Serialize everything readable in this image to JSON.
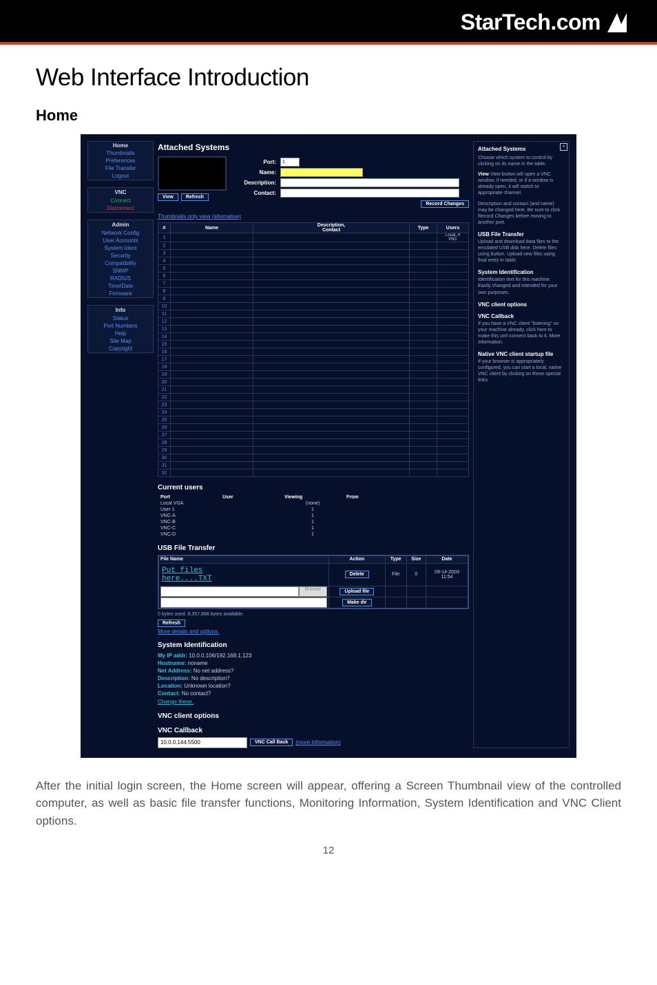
{
  "logo_text": "StarTech.com",
  "section_title": "Web Interface Introduction",
  "sub_heading": "Home",
  "nav": {
    "group1": [
      "Home",
      "Thumbnails",
      "Preferences",
      "File Transfer",
      "Logout"
    ],
    "vnc_head": "VNC",
    "vnc_items": [
      {
        "t": "Connect",
        "c": "nav-green"
      },
      {
        "t": "Disconnect",
        "c": "nav-red"
      }
    ],
    "admin_head": "Admin",
    "admin_items": [
      "Network Config",
      "User Accounts",
      "System Ident",
      "Security",
      "Compatibility",
      "SNMP",
      "RADIUS",
      "Time/Date",
      "Firmware"
    ],
    "info_head": "Info",
    "info_items": [
      "Status",
      "Port Numbers",
      "Help",
      "Site Map",
      "Copyright"
    ]
  },
  "attached": {
    "title": "Attached Systems",
    "labels": {
      "port": "Port:",
      "name": "Name:",
      "desc": "Description:",
      "contact": "Contact:",
      "port_val": "1"
    },
    "view_btn": "View",
    "refresh_btn": "Refresh",
    "record_btn": "Record Changes",
    "thumb_link": "Thumbnails only view (alternative)",
    "cols": [
      "#",
      "Name",
      "Description,\nContact",
      "Type",
      "Users"
    ],
    "first_row_users": "Local, 4\nVNC",
    "row_count": 32
  },
  "users": {
    "title": "Current users",
    "cols": [
      "Port",
      "User",
      "Viewing",
      "From"
    ],
    "rows": [
      [
        "Local VGA",
        "",
        "(none)",
        ""
      ],
      [
        "User 1",
        "",
        "1",
        ""
      ],
      [
        "VNC-A",
        "",
        "1",
        ""
      ],
      [
        "VNC-B",
        "",
        "1",
        ""
      ],
      [
        "VNC-C",
        "",
        "1",
        ""
      ],
      [
        "VNC-D",
        "",
        "1",
        ""
      ]
    ]
  },
  "filetransfer": {
    "title": "USB File Transfer",
    "cols": [
      "File Name",
      "Action",
      "Type",
      "Size",
      "Date"
    ],
    "file_line1": "Put files",
    "file_line2": "here....TXT",
    "delete_btn": "Delete",
    "type": "File",
    "size": "0",
    "date": "09-14-2003\n11:54",
    "browse": "Browse",
    "upload_btn": "Upload file",
    "makedir_btn": "Make dir",
    "bytes_line": "0 bytes used. 8,357,888 bytes available.",
    "refresh_btn": "Refresh",
    "more_link": "More details and options."
  },
  "sysid": {
    "title": "System Identification",
    "ip_label": "My IP addr:",
    "ip_val": "10.0.0.106/192.168.1.123",
    "hostname_label": "Hostname:",
    "hostname_val": "noname",
    "netaddr_label": "Net Address:",
    "netaddr_val": "No net address?",
    "desc_label": "Description:",
    "desc_val": "No description?",
    "loc_label": "Location:",
    "loc_val": "Unknown location?",
    "contact_label": "Contact:",
    "contact_val": "No contact?",
    "change_link": "Change these."
  },
  "vnc_opts_title": "VNC client options",
  "callback": {
    "title": "VNC Callback",
    "value": "10.0.0.144:5500",
    "btn": "VNC Call Back",
    "more": "(more information)"
  },
  "help": {
    "title": "Attached Systems",
    "p1": "Choose which system to control by clicking on its name in the table.",
    "p2": "View button will open a VNC window, if needed, or if a window is already open, it will switch to appropriate channel.",
    "p3": "Description and contact (and name) may be changed here. Be sure to click Record Changes before moving to another port.",
    "s2": "USB File Transfer",
    "p4": "Upload and download data files to the emulated USB disk here. Delete files using button. Upload new files using final entry in table.",
    "s3": "System Identification",
    "p5": "Identification text for this machine. Easily changed and intended for your own purposes.",
    "s4": "VNC client options",
    "s5": "VNC Callback",
    "p6": "If you have a VNC client \"listening\" on your machine already, click here to make this unit connect back to it. More information.",
    "s6": "Native VNC client startup file",
    "p7": "If your browser is appropriately configured, you can start a local, native VNC client by clicking on these special links."
  },
  "body_text": "After the initial login screen, the Home screen will appear, offering a Screen Thumbnail view of the controlled computer, as well as basic file transfer functions, Monitoring Information, System Identification and VNC Client options.",
  "page_number": "12"
}
